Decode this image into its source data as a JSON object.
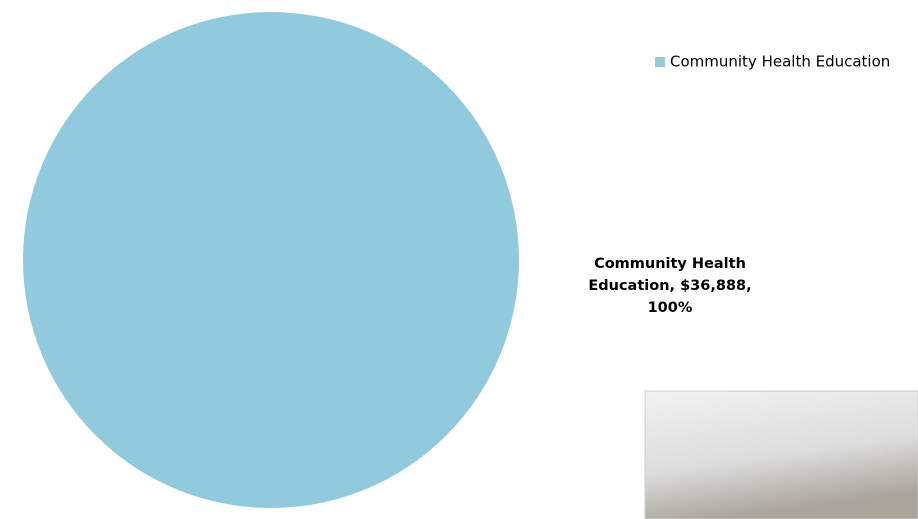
{
  "chart_data": {
    "type": "pie",
    "categories": [
      "Community Health Education"
    ],
    "values": [
      36888
    ],
    "value_labels": [
      "Community Health Education, $36,888, 100%"
    ],
    "colors": [
      "#92cadd"
    ],
    "legend": "top-right"
  }
}
